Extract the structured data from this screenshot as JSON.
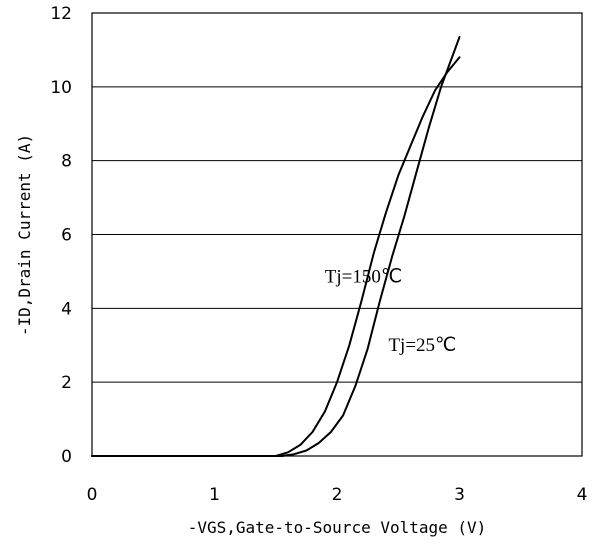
{
  "chart_data": {
    "type": "line",
    "xlabel": "-VGS,Gate-to-Source Voltage (V)",
    "ylabel": "-ID,Drain Current (A)",
    "xlim": [
      0,
      4
    ],
    "ylim": [
      0,
      12
    ],
    "xticks": [
      0,
      1,
      2,
      3,
      4
    ],
    "yticks": [
      0,
      2,
      4,
      6,
      8,
      10,
      12
    ],
    "grid": "horizontal",
    "series": [
      {
        "name": "Tj=150℃",
        "x": [
          0.0,
          1.0,
          1.5,
          1.6,
          1.7,
          1.8,
          1.9,
          2.0,
          2.1,
          2.2,
          2.3,
          2.4,
          2.5,
          2.6,
          2.7,
          2.8,
          2.9,
          3.0
        ],
        "y": [
          0.0,
          0.0,
          0.0,
          0.1,
          0.3,
          0.65,
          1.2,
          2.0,
          3.0,
          4.2,
          5.5,
          6.6,
          7.6,
          8.4,
          9.2,
          9.9,
          10.4,
          10.8
        ]
      },
      {
        "name": "Tj=25℃",
        "x": [
          0.0,
          1.0,
          1.55,
          1.65,
          1.75,
          1.85,
          1.95,
          2.05,
          2.15,
          2.25,
          2.35,
          2.45,
          2.55,
          2.65,
          2.75,
          2.85,
          2.95,
          3.0
        ],
        "y": [
          0.0,
          0.0,
          0.0,
          0.05,
          0.15,
          0.35,
          0.65,
          1.1,
          1.9,
          2.9,
          4.2,
          5.4,
          6.5,
          7.7,
          8.9,
          10.0,
          10.9,
          11.35
        ]
      }
    ],
    "annotations": [
      {
        "text": "Tj=150℃",
        "x": 1.9,
        "y": 4.7
      },
      {
        "text": "Tj=25℃",
        "x": 2.42,
        "y": 2.85
      }
    ]
  }
}
